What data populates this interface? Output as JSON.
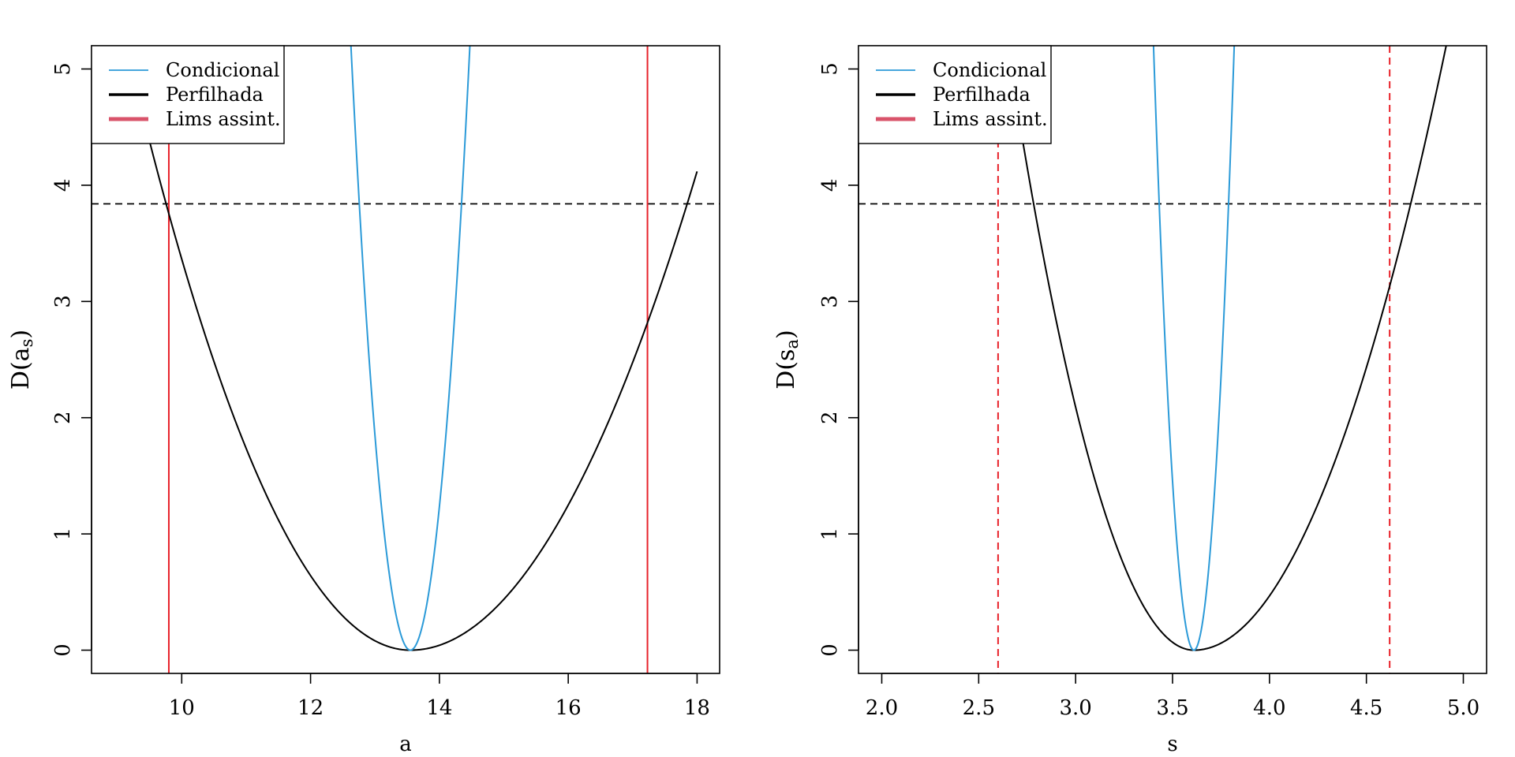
{
  "colors": {
    "conditional": "#2b9ad8",
    "profile": "#000000",
    "limits": "#e8222a",
    "legend_limits": "#d9536a",
    "threshold": "#000000"
  },
  "chart_data": [
    {
      "type": "line",
      "xlabel": "a",
      "ylabel_main": "D(a",
      "ylabel_sub": "s",
      "ylabel_close": ")",
      "xlim": [
        8.6,
        18.35
      ],
      "ylim": [
        -0.2,
        5.2
      ],
      "xticks": [
        10,
        12,
        14,
        16,
        18
      ],
      "yticks": [
        0,
        1,
        2,
        3,
        4,
        5
      ],
      "threshold": 3.84,
      "limit_style": "solid",
      "limits": [
        9.8,
        17.23
      ],
      "profile": {
        "center": 13.55,
        "curvature_left": 0.267,
        "curvature_right": 0.208,
        "x_range": [
          9.4,
          18.0
        ]
      },
      "conditional": {
        "center": 13.55,
        "curvature": 6.1,
        "x_range": [
          12.5,
          14.6
        ]
      },
      "legend": {
        "position": "top-left",
        "entries": [
          "Condicional",
          "Perfilhada",
          "Lims assint."
        ]
      }
    },
    {
      "type": "line",
      "xlabel": "s",
      "ylabel_main": "D(s",
      "ylabel_sub": "a",
      "ylabel_close": ")",
      "xlim": [
        1.88,
        5.12
      ],
      "ylim": [
        -0.2,
        5.2
      ],
      "xticks": [
        "2.0",
        "2.5",
        "3.0",
        "3.5",
        "4.0",
        "4.5",
        "5.0"
      ],
      "yticks": [
        0,
        1,
        2,
        3,
        4,
        5
      ],
      "threshold": 3.84,
      "limit_style": "dashed",
      "limits": [
        2.6,
        4.62
      ],
      "profile": {
        "center": 3.61,
        "curvature_left": 5.62,
        "curvature_right": 3.07,
        "x_range": [
          2.4,
          5.0
        ]
      },
      "conditional": {
        "center": 3.61,
        "curvature": 120,
        "x_range": [
          3.35,
          3.87
        ]
      },
      "legend": {
        "position": "top-left",
        "entries": [
          "Condicional",
          "Perfilhada",
          "Lims assint."
        ]
      }
    }
  ]
}
